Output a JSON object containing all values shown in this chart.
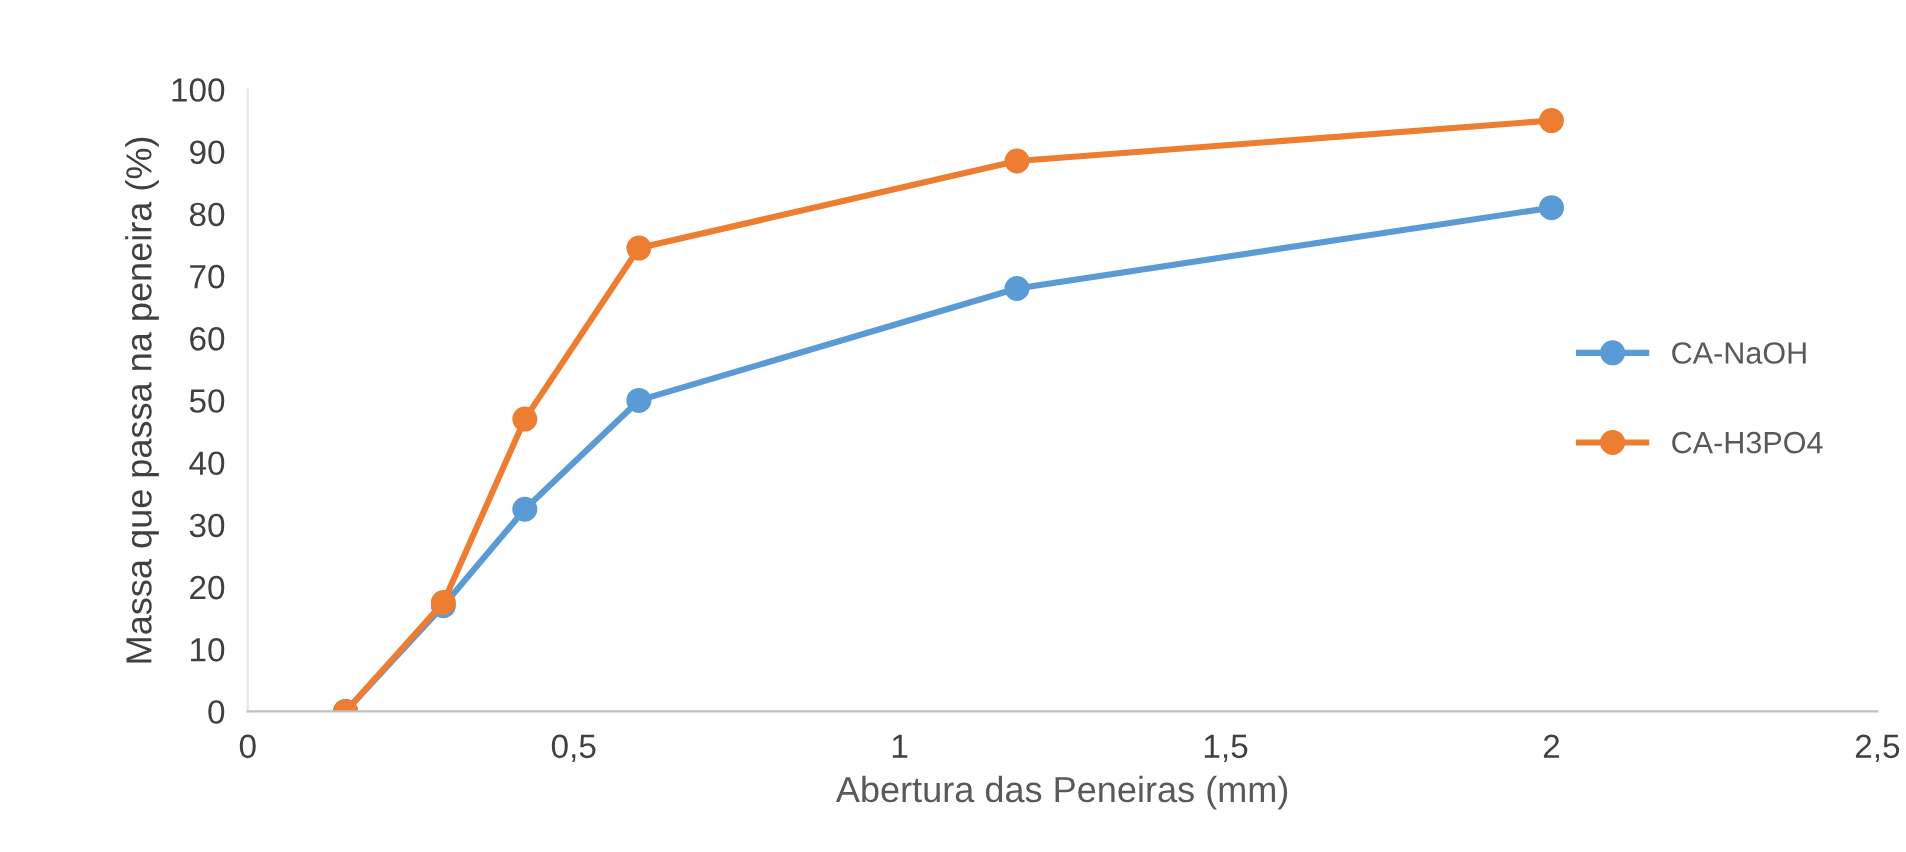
{
  "chart_data": {
    "type": "line",
    "xlabel": "Abertura das Peneiras (mm)",
    "ylabel": "Massa que passa na peneira (%)",
    "x": [
      0.15,
      0.3,
      0.425,
      0.6,
      1.18,
      2
    ],
    "series": [
      {
        "name": "CA-NaOH",
        "color": "#5b9bd5",
        "values": [
          0,
          17,
          32.5,
          50,
          68,
          81
        ]
      },
      {
        "name": "CA-H3PO4",
        "color": "#ed7d31",
        "values": [
          0,
          17.5,
          47,
          74.5,
          88.5,
          95
        ]
      }
    ],
    "xlim": [
      0,
      2.5
    ],
    "xticks": [
      0,
      {
        "value": 0.5,
        "label": "0,5"
      },
      1,
      {
        "value": 1.5,
        "label": "1,5"
      },
      2,
      {
        "value": 2.5,
        "label": "2,5"
      }
    ],
    "ylim": [
      0,
      100
    ],
    "yticks": [
      0,
      10,
      20,
      30,
      40,
      50,
      60,
      70,
      80,
      90,
      100
    ],
    "grid": false,
    "legend": "right",
    "marker": "circle",
    "line_style": "solid"
  }
}
